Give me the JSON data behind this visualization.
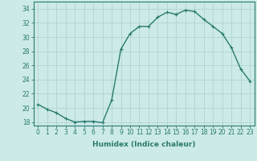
{
  "x": [
    0,
    1,
    2,
    3,
    4,
    5,
    6,
    7,
    8,
    9,
    10,
    11,
    12,
    13,
    14,
    15,
    16,
    17,
    18,
    19,
    20,
    21,
    22,
    23
  ],
  "y": [
    20.5,
    19.8,
    19.3,
    18.5,
    18.0,
    18.1,
    18.1,
    17.9,
    21.1,
    28.3,
    30.5,
    31.5,
    31.5,
    32.8,
    33.5,
    33.2,
    33.8,
    33.6,
    32.5,
    31.5,
    30.5,
    28.5,
    25.5,
    23.8
  ],
  "line_color": "#2a7b6f",
  "marker": "+",
  "marker_size": 3,
  "bg_color": "#cceae7",
  "grid_color": "#b0d5d0",
  "xlabel": "Humidex (Indice chaleur)",
  "ylim": [
    17.5,
    35.0
  ],
  "xlim": [
    -0.5,
    23.5
  ],
  "yticks": [
    18,
    20,
    22,
    24,
    26,
    28,
    30,
    32,
    34
  ],
  "xticks": [
    0,
    1,
    2,
    3,
    4,
    5,
    6,
    7,
    8,
    9,
    10,
    11,
    12,
    13,
    14,
    15,
    16,
    17,
    18,
    19,
    20,
    21,
    22,
    23
  ],
  "tick_color": "#2a7b6f",
  "label_fontsize": 6.5,
  "axis_fontsize": 5.5,
  "line_width": 1.0
}
